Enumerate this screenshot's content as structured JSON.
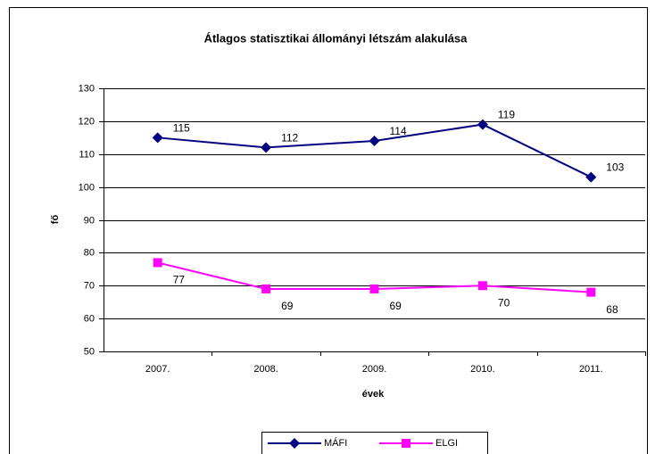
{
  "chart_data": {
    "type": "line",
    "title": "Átlagos statisztikai állományi létszám alakulása",
    "x_label": "évek",
    "y_label": "fő",
    "categories": [
      "2007.",
      "2008.",
      "2009.",
      "2010.",
      "2011."
    ],
    "series": [
      {
        "name": "MÁFI",
        "color": "#000080",
        "marker": "diamond",
        "values": [
          115,
          112,
          114,
          119,
          103
        ]
      },
      {
        "name": "ELGI",
        "color": "#ff00ff",
        "marker": "square",
        "values": [
          77,
          69,
          69,
          70,
          68
        ]
      }
    ],
    "ylim": [
      50,
      130
    ],
    "yticks": [
      50,
      60,
      70,
      80,
      90,
      100,
      110,
      120,
      130
    ],
    "grid": true,
    "legend": "bottom"
  }
}
